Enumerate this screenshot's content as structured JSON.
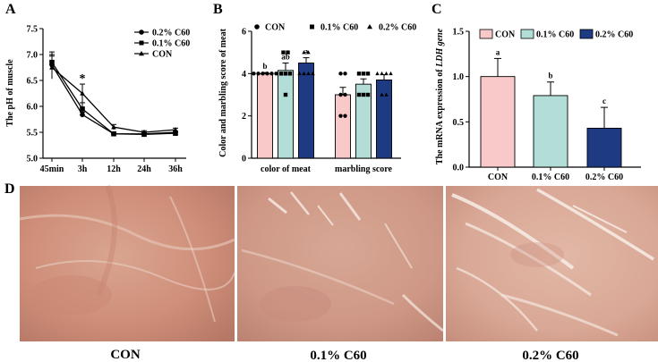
{
  "panels": {
    "a": "A",
    "b": "B",
    "c": "C",
    "d": "D"
  },
  "colors": {
    "con": "#F9C9C9",
    "c60_01": "#B3DED8",
    "c60_02": "#1E3A82",
    "line": "#000000"
  },
  "chart_data": [
    {
      "type": "line",
      "panel": "A",
      "ylabel": "The pH of muscle",
      "xlabel": "",
      "categories": [
        "45min",
        "3h",
        "12h",
        "24h",
        "36h"
      ],
      "ylim": [
        5.0,
        7.5
      ],
      "yticks": [
        "5.0",
        "5.5",
        "6.0",
        "6.5",
        "7.0",
        "7.5"
      ],
      "series": [
        {
          "name": "0.2% C60",
          "marker": "circle",
          "values": [
            6.8,
            5.84,
            5.47,
            5.47,
            5.5
          ],
          "err": [
            0.2,
            0.05,
            0.03,
            0.02,
            0.02
          ]
        },
        {
          "name": "0.1% C60",
          "marker": "square",
          "values": [
            6.85,
            5.95,
            5.47,
            5.46,
            5.48
          ],
          "err": [
            0.2,
            0.12,
            0.03,
            0.02,
            0.03
          ]
        },
        {
          "name": "CON",
          "marker": "triangle",
          "values": [
            6.75,
            6.25,
            5.6,
            5.5,
            5.55
          ],
          "err": [
            0.22,
            0.18,
            0.05,
            0.03,
            0.03
          ]
        }
      ],
      "annotations": [
        {
          "category": "3h",
          "text": "*"
        }
      ]
    },
    {
      "type": "bar",
      "panel": "B",
      "ylabel": "Color  and marbling score of meat",
      "categories": [
        "color of meat",
        "marbling score"
      ],
      "ylim": [
        0,
        6
      ],
      "yticks": [
        "0",
        "2",
        "4",
        "6"
      ],
      "legend": [
        {
          "name": "CON",
          "marker": "circle"
        },
        {
          "name": "0.1% C60",
          "marker": "square"
        },
        {
          "name": "0.2% C60",
          "marker": "triangle"
        }
      ],
      "series": [
        {
          "name": "CON",
          "values": [
            4.0,
            3.0
          ],
          "err": [
            0.05,
            0.35
          ],
          "labels": [
            "b",
            ""
          ],
          "points": [
            [
              4,
              4,
              4,
              4,
              4,
              4
            ],
            [
              4,
              4,
              3,
              2,
              2,
              3
            ]
          ]
        },
        {
          "name": "0.1% C60",
          "values": [
            4.15,
            3.5
          ],
          "err": [
            0.35,
            0.25
          ],
          "labels": [
            "ab",
            ""
          ],
          "points": [
            [
              5,
              5,
              4,
              4,
              4,
              3
            ],
            [
              4,
              4,
              4,
              3,
              3,
              3
            ]
          ]
        },
        {
          "name": "0.2% C60",
          "values": [
            4.5,
            3.7
          ],
          "err": [
            0.25,
            0.25
          ],
          "labels": [
            "a",
            ""
          ],
          "points": [
            [
              5,
              5,
              4,
              4,
              4,
              4
            ],
            [
              4,
              4,
              4,
              4,
              3,
              3
            ]
          ]
        }
      ]
    },
    {
      "type": "bar",
      "panel": "C",
      "ylabel_prefix": "The mRNA expression of ",
      "ylabel_gene": "LDH gene",
      "categories": [
        "CON",
        "0.1% C60",
        "0.2% C60"
      ],
      "ylim": [
        0.0,
        1.5
      ],
      "yticks": [
        "0.0",
        "0.5",
        "1.0",
        "1.5"
      ],
      "values": [
        1.0,
        0.79,
        0.43
      ],
      "err": [
        0.2,
        0.15,
        0.23
      ],
      "labels": [
        "a",
        "b",
        "c"
      ],
      "legend": [
        "CON",
        "0.1% C60",
        "0.2% C60"
      ]
    }
  ],
  "photos": {
    "captions": [
      "CON",
      "0.1% C60",
      "0.2% C60"
    ]
  }
}
